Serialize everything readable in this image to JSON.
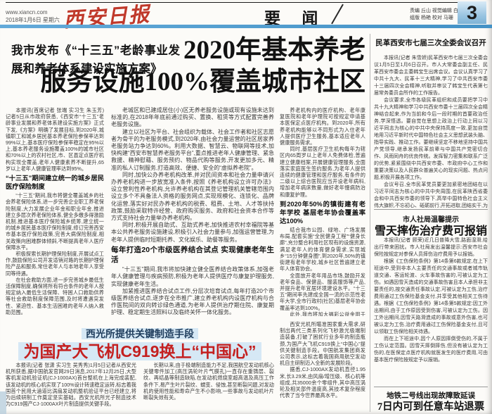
{
  "colors": {
    "accent_blue": "#4c9fd4",
    "brand_red": "#c0392b",
    "headline_red": "#c42020",
    "kicker_navy": "#1e3c5c"
  },
  "masthead": {
    "url": "www.xiancn.com",
    "date": "2018年1月6日 星期六",
    "logo": "西安日报",
    "section": "要 闻",
    "editors_line1": "责编 丘山 视觉编辑 白阳",
    "editors_line2": "组版 杨艳 校对 马珊",
    "page_number": "3"
  },
  "main_article": {
    "kicker": "我市发布《“十三五”老龄事业发展和养老体系建设实施方案》",
    "headline_line1": "2020年基本养老",
    "headline_line2": "服务设施100%覆盖城市社区",
    "columns": [
      [
        {
          "type": "p",
          "text": "本报讯(首席记者 张端 实习生 朱玉芳)记者5日从市政府获悉,《西安市“十三五”老龄事业发展和养老体系建设实施方案》正式下发,《方案》明确了发展目标,到2020年,城镇职工和城乡居民基本养老保险参保率达到99%以上,基本医疗保险参保率稳定在95%以上,基本养老服务设施覆盖100%的城市社区和70%以上的农村社区,市、区县定点医疗机构实现全覆盖,老年人健康素养不断提升,65岁以上老年人健康管理率达到95%。"
        },
        {
          "type": "h",
          "text": "“十三五”期间建立统一的城乡居民医疗保险制度"
        },
        {
          "type": "p",
          "text": "“十三五”期间,我市将健全覆盖城乡的社会养老保险体系,进一步完善企业职工养老保险制度,大力发展企业年金和职业年金,推进建立多层次养老保险体系,健全多缴多得激励机制,推进基本医疗保险城乡统筹,建立统一的城乡居民基本医疗保险制度,修订完善西安市基本医疗保险政策,完善大病保险制度,相关政策向困难群体倾斜,不断提高老年人医疗保障水平。"
        },
        {
          "type": "p",
          "text": "积极探索长期护理保险制度,开展试点工作,鼓励保险公司开发适销对路的长期护理保险产品和服务,常住老年人与本地老年人享受同等待遇。"
        },
        {
          "type": "p",
          "text": "在社会救助方面,进一步完善城乡最低生活保障制度,确保将所有符合条件的老年人按规定纳入最低生活保障、特困人口救助供养等社会救助制度保障范围,及时将遭遇突发性、紧迫性、基本生活困难的老年人纳入救助范围。"
        },
        {
          "type": "h",
          "text": "开发私人订制服务 打造“虚拟养老院”"
        },
        {
          "type": "p",
          "text": "“十三五”期间,我市将大力推进居家社区养老服务,2018年年底前完成全市养老服务设施布局规划,新建城区和新建居住(小)区按每百户20平方米配置建设养老服务设施,确保养老服务设施与住宅同步规划、同步建设、同步验收、同步交付使用。"
        }
      ],
      [
        {
          "type": "p",
          "text": "老城区和已建成居住(小)区无养老服务设施或现有设施未达到标准的,在2018年年底前通过购买、置换、租赁等方式配置完善养老服务设施。"
        },
        {
          "type": "p",
          "text": "建立以社区为平台、社会组织为载体、社会工作者和社区志愿者为骨干的为老服务模式,到2020年,由社会力量运营的社区居家养老服务站力争达到60%。利用大数据、智慧云、物联网等技术,加快构建“西安市智慧养老服务平台”,重点推进老年人健康管理、紧急救援、精神慰藉、服务预约、物品代购等服务,开发更加多元、精准的私人订制服务,打造高效、便捷、安全的“虚拟养老院”。"
        },
        {
          "type": "p",
          "text": "同时,加快公办养老机构改革,并对民间资本和社会力量申请兴办养老机构进一步放宽准入条件,按照《养老机构设立许可办法》设立营利性养老机构,允许养老机构在其登记管理机关管辖范围内设立多个不具备法人资格的服务网点,实现规模化、连锁化、品牌化运营,落实好对民办养老机构的税费、租费、土地、人才等扶持政策,鼓励采取特许经营、政府购买服务、政府和社会资本合作等方式支持社会力量举办养老机构。"
        },
        {
          "type": "p",
          "text": "同时,积极开展自助式、互助式养老,加快推进农村幸福院等基本公共养老服务设施建设,积极引入社会力量参与,加强运营管理,为老年人提供临时短期托养、文化娱乐、助餐等服务。"
        },
        {
          "type": "h",
          "text": "每年打造20个市级医养结合试点 实现健康老年生活"
        },
        {
          "type": "p",
          "text": "“十三五”期间,我市将加快建立健全医养结合政策体系,加强老年人健康管理与疾病预防,积极为老年人提供医疗与康复护理服务,实现健康老年生活。"
        },
        {
          "type": "p",
          "text": "加紧推进医养结合试点工作,分层次培育试点,每年打造20个市级医养结合试点,逐步在全市推广,建立养老机构内设医疗机构与合作医院间的双向转诊绿色通道,为老年人提供治疗期住院、康复期护理、稳定期生活照料以及临终关怀一体化服务。"
        },
        {
          "type": "p",
          "text": "大力支持医疗卫生资源进入社区和居民家庭,100张床位以上的养老机构应设置卫生所(卫生室)、护理站,条件具备的可申请设立康复医院、护理院、临终关怀机构等,鼓励执业医师到养老机构设置的医疗机构多点执业。"
        }
      ],
      [
        {
          "type": "p",
          "text": "养老机构内的医疗机构、老年康复医院和老年护理院可按规定申请基本医保定点医疗机构。到2020年,所有养老机构能够以不同形式为入住老年人提供医疗卫生服务,基本适应老年人健康服务需求。"
        },
        {
          "type": "p",
          "text": "同时,基层医疗卫生机构每年为辖区内65周岁以上老年人免费体检,普遍建立健康档案,开展健康管理服务,全面落实家庭医生签约服务,为老年人提供连续的健康管理和医疗服务,有条件的二级以上综合医院应当开设老年病科,增加老年病床数量,做好老年慢病防治和康复护理。"
        },
        {
          "type": "h",
          "text": "到2020年50%的镇街建有老年学校 基层老年协会覆盖率达100%"
        },
        {
          "type": "p",
          "text": "结合我市公园、绿地、广场发展布局,配套实施“全民健身工程”“健身长廊”,充分整合利用社区现有的设施资源,满足老年人的体育健身需求,实现城乡“15分钟健身圈”,到2020年,50%的镇街建有老年学校,城乡社区普遍建立老年人体育协会。"
        },
        {
          "type": "p",
          "text": "全面放开老年用品市场,鼓励开发老年食品、保健品、服装服饰等产品,并提升老年宜居环境建设水平。“十三五”期间率先建成全国一流的示范性老年大学,全市行政村(社区)基层老年协会覆盖率达到100%。"
        },
        {
          "type": "p",
          "text": "此外,我市将加大福彩公益金用于老龄事业发展的投入,50%以上用于养老服务业,落实养老机构一次性建设补贴、医养结合补贴等补贴政策,进一步完善老年人各类补贴制度。"
        }
      ]
    ]
  },
  "c919_article": {
    "kicker": "西光所提供关键制造手段",
    "headline": "为国产大飞机C919换上“中国心”",
    "columns": [
      [
        {
          "type": "p",
          "text": "本报讯(记者 张潇 实习生 吴秀秀)1月5日记者从西安光机所获悉,据中国航发官网29日消息,2017年12月25日,大型客机发动机验证机(CJ-1000AX)首台整机在上海完成装配,该发动机的核心机实现了100%设计转速稳定运转,标志着我国首个民用大涵道比涡扇发动机整机验证平台已经建立,将为后续研制工作奠定坚实基础。西安光机所光子制造技术为C919国产CJ-1000AX叶片制造提供关键手段。"
        }
      ],
      [
        {
          "type": "p",
          "text": "长期以来,由于极端制造能力不足,我国航空发动机核心关键零件加工(高压涡轮叶片气膜孔)一直存在重铸层、裂纹、再结晶等制造缺陷,在发动机燃烧室超高温及高压工作条件下,易产生叶片裂纹、蠕变、侵蚀,甚至断裂问题,对发动机的使用性能和寿命产生不小影响,一些事故与发动机叶片断裂失效有关。"
        }
      ],
      [
        {
          "type": "p",
          "text": "西安光机所瞄准国家重大需求,研制出两代三类系列化飞秒激光极端制造装备,打破了困扰行业多年的制造瓶颈,为国产大飞机C919换上“中国心”提供关键制造手段。中国航发集团商发公司表示,这标志着我国商用航空发动机自主研制迈入全新的发展阶段。"
        },
        {
          "type": "p",
          "text": "据悉,CJ-1000AX发动机直径1.95米,长3.29米,由风扇/增压级、核心机等组成,共35000余个零组件,其中高压涡轮及相关部件温度高,其技术复杂程度代表了当今世界最高水平。"
        }
      ]
    ]
  },
  "sidebar": {
    "article1": {
      "headline": "民革西安市七届三次全委会议召开",
      "blocks": [
        {
          "type": "p",
          "text": "本报讯(记者 朱雪娇)民革西安市七届三次全委会议1月5日至1月6日召开。市人大常委会副主任、民革西安市委会主委韩宝生出席会议。会议认真学习了中共十九大、民革十三大精神,学习了中共西安市委十三届四次全会精神,听取并审议了韩宝生代表第七届常务委员会所作的工作报告。"
        },
        {
          "type": "p",
          "text": "会议要求,全市各级民革组织和成员要把学习中共十九大精神和学习中共西安市委十三届四次全会精神结合起来,作为当前和今后一段时期的首要政治任务,学深悟透。要自觉在思想上政治上行动上同以习近平同志为核心的中共中央保持高度一致,更加自觉地用习近平新时代中国特色社会主义思想武装头脑、指导实践、推动工作。要继续坚定不移地坚持中国共产党领导,继承发扬民革前辈与中国共产党密切合作、风雨同舟的优良传统。发挥智力密集和联系广泛的优势,紧紧围绕中共西安市委、市政府中心工作和重要决策以及人民群众普遍关心的现实问题、热点问题,积极开展各项工作。"
        },
        {
          "type": "p",
          "text": "会议号召,全市民革党员要更加紧密地团结在以习近平同志为核心的中共中央周围,在民革陕西省委会和中共西安市委的领导下,高举中国特色社会主义伟大旗帜,不忘初心、砥砺前行,开拓进取,团结实干,为大西安追赶超越贡献智慧和力量。"
        }
      ]
    },
    "article2": {
      "kicker": "市人社局温馨提示",
      "headline": "雪天摔伤治疗费可报销",
      "blocks": [
        {
          "type": "p",
          "text": "本报讯(记者 顾荣)近几日普降大雪,路面湿滑,给出行带来困扰。市人社局发出温馨提示:西安市社会保险按规定对参保人员摔伤治疗费用予以报销。"
        },
        {
          "type": "p",
          "text": "根据《工伤保险条例》第14条第6款规定,在上下班途中,受到非本人主要责任的交通事故或者城市轨道交通、客运轮渡、火车事故伤害的,可被认定为工伤。如遇因雪天造成的交通事故伤害且本人承担非主要责任的,按交通责任事故认定,可被认定为工伤,治疗费用通过工伤保险基金支付,并享受其他相关工伤待遇。根据《工伤保险条例》第14条第5款规定:因工外出期间,由于工作原因受到伤害,可被认定为工伤。因工外出期间,因雪天路滑造成的事故或意外伤害,也可被认定为工伤,治疗费用通过工伤保险基金支付,且可以领取工伤保险相关待遇。"
        },
        {
          "type": "p",
          "text": "而在上下班途中,因个人原因摔倒受伤的,不属于工伤认定范围。因雪天摔倒摔伤,但没有被认定为工伤的,在医保定点医疗机构就医发生的医疗费用,可由基本医疗保险按规定予以报销。"
        }
      ]
    },
    "article3": {
      "headline_top": "地铁二号线出现故障致延误",
      "headline_main": "7日内可到任意车站退票"
    }
  }
}
